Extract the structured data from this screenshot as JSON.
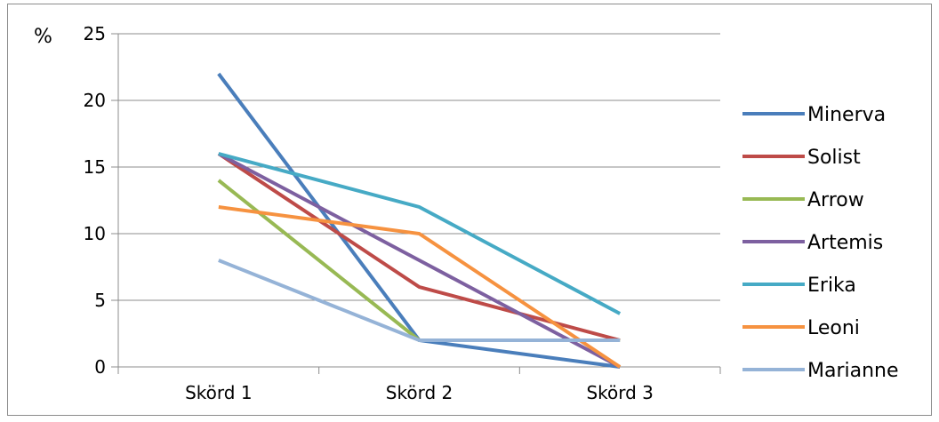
{
  "chart_data": {
    "type": "line",
    "categories": [
      "Skörd 1",
      "Skörd 2",
      "Skörd 3"
    ],
    "y_unit_label": "%",
    "ylim": [
      0,
      25
    ],
    "yticks": [
      0,
      5,
      10,
      15,
      20,
      25
    ],
    "grid": true,
    "legend_position": "right",
    "series": [
      {
        "name": "Minerva",
        "color": "#4a7ebb",
        "values": [
          22,
          2,
          0
        ]
      },
      {
        "name": "Solist",
        "color": "#be4b48",
        "values": [
          16,
          6,
          2
        ]
      },
      {
        "name": "Arrow",
        "color": "#98b954",
        "values": [
          14,
          2,
          2
        ]
      },
      {
        "name": "Artemis",
        "color": "#7d60a0",
        "values": [
          16,
          8,
          0
        ]
      },
      {
        "name": "Erika",
        "color": "#46aac5",
        "values": [
          16,
          12,
          4
        ]
      },
      {
        "name": "Leoni",
        "color": "#f69240",
        "values": [
          12,
          10,
          0
        ]
      },
      {
        "name": "Marianne",
        "color": "#95b3d7",
        "values": [
          8,
          2,
          2
        ]
      }
    ]
  }
}
